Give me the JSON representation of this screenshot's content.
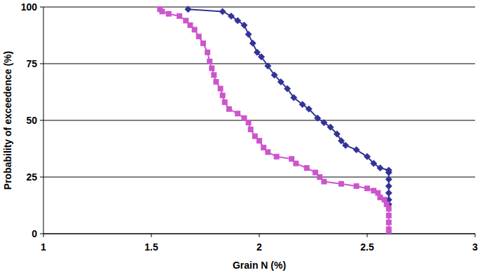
{
  "chart_data": {
    "type": "line",
    "x_label": "Grain N (%)",
    "y_label": "Probability of exceedence (%)",
    "xlim": [
      1,
      3
    ],
    "xticks": [
      1,
      1.5,
      2,
      2.5,
      3
    ],
    "ylim": [
      0,
      100
    ],
    "yticks": [
      0,
      25,
      50,
      75,
      100
    ],
    "grid": true,
    "series": [
      {
        "color": "#333399",
        "marker": "diamond",
        "x": [
          1.67,
          1.83,
          1.87,
          1.9,
          1.93,
          1.95,
          1.97,
          1.99,
          2.01,
          2.04,
          2.07,
          2.1,
          2.13,
          2.16,
          2.2,
          2.23,
          2.27,
          2.3,
          2.33,
          2.36,
          2.38,
          2.4,
          2.45,
          2.5,
          2.53,
          2.56,
          2.6,
          2.6,
          2.6,
          2.6,
          2.6,
          2.6,
          2.6
        ],
        "values": [
          99,
          98,
          96,
          94,
          92,
          88,
          84,
          80,
          78,
          74,
          70,
          67,
          64,
          60,
          57,
          55,
          51,
          49,
          47,
          44,
          41,
          39,
          37,
          34,
          31,
          29,
          28,
          27,
          24,
          21,
          18,
          15,
          13
        ]
      },
      {
        "color": "#cc55cc",
        "marker": "square",
        "x": [
          1.54,
          1.55,
          1.58,
          1.63,
          1.66,
          1.68,
          1.7,
          1.72,
          1.74,
          1.76,
          1.77,
          1.78,
          1.79,
          1.8,
          1.82,
          1.83,
          1.84,
          1.86,
          1.9,
          1.93,
          1.95,
          1.96,
          1.98,
          2.0,
          2.02,
          2.04,
          2.08,
          2.15,
          2.17,
          2.22,
          2.26,
          2.28,
          2.3,
          2.38,
          2.45,
          2.5,
          2.53,
          2.55,
          2.56,
          2.58,
          2.59,
          2.6,
          2.6,
          2.6,
          2.6,
          2.6
        ],
        "values": [
          99,
          98,
          97,
          96,
          94,
          92,
          90,
          87,
          84,
          80,
          76,
          73,
          70,
          67,
          64,
          61,
          58,
          55,
          53,
          51,
          49,
          46,
          43,
          41,
          38,
          36,
          34,
          33,
          31,
          29,
          27,
          25,
          23,
          22,
          21,
          20,
          19,
          18,
          16,
          15,
          13,
          11,
          8,
          5,
          2,
          0
        ]
      }
    ]
  }
}
